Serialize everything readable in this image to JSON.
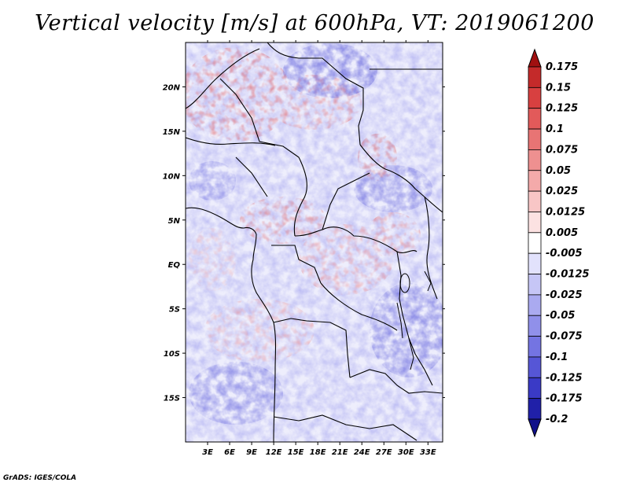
{
  "title": "Vertical velocity [m/s] at 600hPa, VT: 2019061200",
  "footer": "GrADS: IGES/COLA",
  "map": {
    "lon_range": [
      0,
      35
    ],
    "lat_range": [
      -20,
      25
    ],
    "lon_ticks": [
      "3E",
      "6E",
      "9E",
      "12E",
      "15E",
      "18E",
      "21E",
      "24E",
      "27E",
      "30E",
      "33E"
    ],
    "lat_ticks": [
      "20N",
      "15N",
      "10N",
      "5N",
      "EQ",
      "5S",
      "10S",
      "15S"
    ]
  },
  "colorbar": {
    "labels": [
      "0.175",
      "0.15",
      "0.125",
      "0.1",
      "0.075",
      "0.05",
      "0.025",
      "0.0125",
      "0.005",
      "-0.005",
      "-0.0125",
      "-0.025",
      "-0.05",
      "-0.075",
      "-0.1",
      "-0.125",
      "-0.175",
      "-0.2"
    ],
    "colors": [
      "#a01010",
      "#c42a2a",
      "#d84040",
      "#e25a5a",
      "#e87474",
      "#ee9090",
      "#f4aaaa",
      "#f8c6c6",
      "#fce2e2",
      "#ffffff",
      "#e2e2fc",
      "#c6c6f6",
      "#aaaaf0",
      "#9090ea",
      "#7474e2",
      "#5656d6",
      "#3a3ac6",
      "#2020a8",
      "#10108a"
    ]
  }
}
